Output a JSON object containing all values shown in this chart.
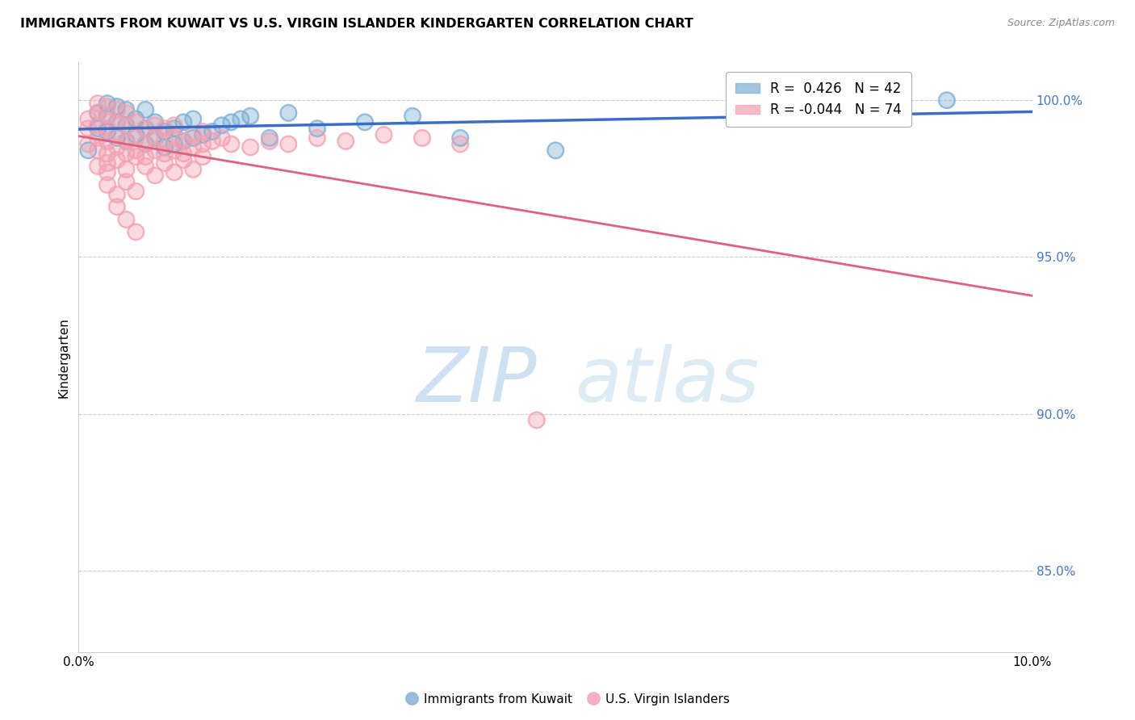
{
  "title": "IMMIGRANTS FROM KUWAIT VS U.S. VIRGIN ISLANDER KINDERGARTEN CORRELATION CHART",
  "source": "Source: ZipAtlas.com",
  "ylabel": "Kindergarten",
  "y_ticks": [
    0.85,
    0.9,
    0.95,
    1.0
  ],
  "y_tick_labels": [
    "85.0%",
    "90.0%",
    "95.0%",
    "100.0%"
  ],
  "x_range": [
    0.0,
    0.1
  ],
  "y_range": [
    0.824,
    1.012
  ],
  "legend_r_blue": "R =  0.426",
  "legend_n_blue": "N = 42",
  "legend_r_pink": "R = -0.044",
  "legend_n_pink": "N = 74",
  "blue_color": "#7BAFD4",
  "pink_color": "#F4A0B0",
  "blue_line_color": "#3A6CC8",
  "pink_line_color": "#E06080",
  "background_color": "#FFFFFF",
  "grid_color": "#CCCCCC",
  "watermark_color": "#D8EAF5",
  "blue_x": [
    0.001,
    0.002,
    0.002,
    0.003,
    0.003,
    0.003,
    0.004,
    0.004,
    0.004,
    0.005,
    0.005,
    0.005,
    0.006,
    0.006,
    0.007,
    0.007,
    0.007,
    0.008,
    0.008,
    0.009,
    0.009,
    0.01,
    0.01,
    0.011,
    0.011,
    0.012,
    0.012,
    0.013,
    0.014,
    0.015,
    0.016,
    0.017,
    0.018,
    0.02,
    0.022,
    0.025,
    0.03,
    0.035,
    0.04,
    0.05,
    0.072,
    0.091
  ],
  "blue_y": [
    0.984,
    0.991,
    0.996,
    0.99,
    0.995,
    0.999,
    0.988,
    0.993,
    0.998,
    0.987,
    0.992,
    0.997,
    0.989,
    0.994,
    0.986,
    0.991,
    0.997,
    0.988,
    0.993,
    0.985,
    0.99,
    0.986,
    0.991,
    0.987,
    0.993,
    0.988,
    0.994,
    0.989,
    0.99,
    0.992,
    0.993,
    0.994,
    0.995,
    0.988,
    0.996,
    0.991,
    0.993,
    0.995,
    0.988,
    0.984,
    0.998,
    1.0
  ],
  "pink_x": [
    0.001,
    0.001,
    0.001,
    0.002,
    0.002,
    0.002,
    0.002,
    0.002,
    0.003,
    0.003,
    0.003,
    0.003,
    0.003,
    0.003,
    0.004,
    0.004,
    0.004,
    0.004,
    0.005,
    0.005,
    0.005,
    0.005,
    0.006,
    0.006,
    0.006,
    0.007,
    0.007,
    0.007,
    0.008,
    0.008,
    0.008,
    0.009,
    0.009,
    0.009,
    0.01,
    0.01,
    0.01,
    0.011,
    0.011,
    0.012,
    0.012,
    0.013,
    0.013,
    0.014,
    0.015,
    0.016,
    0.018,
    0.02,
    0.022,
    0.025,
    0.028,
    0.032,
    0.036,
    0.04,
    0.002,
    0.003,
    0.004,
    0.005,
    0.006,
    0.007,
    0.008,
    0.009,
    0.01,
    0.011,
    0.012,
    0.013,
    0.003,
    0.004,
    0.005,
    0.006,
    0.004,
    0.005,
    0.006,
    0.048
  ],
  "pink_y": [
    0.986,
    0.991,
    0.994,
    0.984,
    0.988,
    0.992,
    0.996,
    0.999,
    0.983,
    0.987,
    0.991,
    0.995,
    0.998,
    0.98,
    0.985,
    0.989,
    0.993,
    0.997,
    0.983,
    0.987,
    0.992,
    0.996,
    0.984,
    0.988,
    0.993,
    0.982,
    0.986,
    0.991,
    0.984,
    0.988,
    0.992,
    0.983,
    0.987,
    0.991,
    0.984,
    0.988,
    0.992,
    0.983,
    0.987,
    0.985,
    0.989,
    0.986,
    0.99,
    0.987,
    0.988,
    0.986,
    0.985,
    0.987,
    0.986,
    0.988,
    0.987,
    0.989,
    0.988,
    0.986,
    0.979,
    0.977,
    0.981,
    0.978,
    0.982,
    0.979,
    0.976,
    0.98,
    0.977,
    0.981,
    0.978,
    0.982,
    0.973,
    0.97,
    0.974,
    0.971,
    0.966,
    0.962,
    0.958,
    0.898
  ]
}
